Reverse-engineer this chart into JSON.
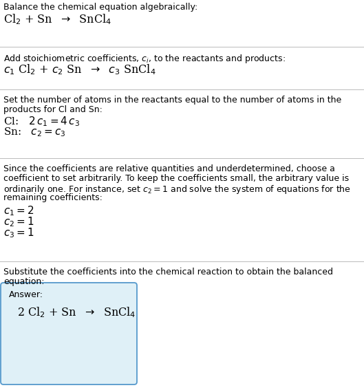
{
  "bg_color": "#ffffff",
  "text_color": "#000000",
  "line_color": "#bbbbbb",
  "answer_box_color": "#dff0f7",
  "answer_box_edge": "#5599cc",
  "section1_plain": "Balance the chemical equation algebraically:",
  "section1_chem": "Cl$_2$ + Sn  $\\rightarrow$  SnCl$_4$",
  "section2_plain": "Add stoichiometric coefficients, $c_i$, to the reactants and products:",
  "section2_chem": "$c_1$ Cl$_2$ + $c_2$ Sn  $\\rightarrow$  $c_3$ SnCl$_4$",
  "section3_plain1": "Set the number of atoms in the reactants equal to the number of atoms in the",
  "section3_plain2": "products for Cl and Sn:",
  "section3_cl": "Cl:   $2\\,c_1 = 4\\,c_3$",
  "section3_sn": "Sn:   $c_2 = c_3$",
  "section4_plain1": "Since the coefficients are relative quantities and underdetermined, choose a",
  "section4_plain2": "coefficient to set arbitrarily. To keep the coefficients small, the arbitrary value is",
  "section4_plain3": "ordinarily one. For instance, set $c_2 = 1$ and solve the system of equations for the",
  "section4_plain4": "remaining coefficients:",
  "section4_c1": "$c_1 = 2$",
  "section4_c2": "$c_2 = 1$",
  "section4_c3": "$c_3 = 1$",
  "section5_plain1": "Substitute the coefficients into the chemical reaction to obtain the balanced",
  "section5_plain2": "equation:",
  "answer_label": "Answer:",
  "answer_chem": "2 Cl$_2$ + Sn  $\\rightarrow$  SnCl$_4$",
  "fs_plain": 9.0,
  "fs_chem": 11.5,
  "fs_math": 11.0,
  "lw_sep": 0.7
}
